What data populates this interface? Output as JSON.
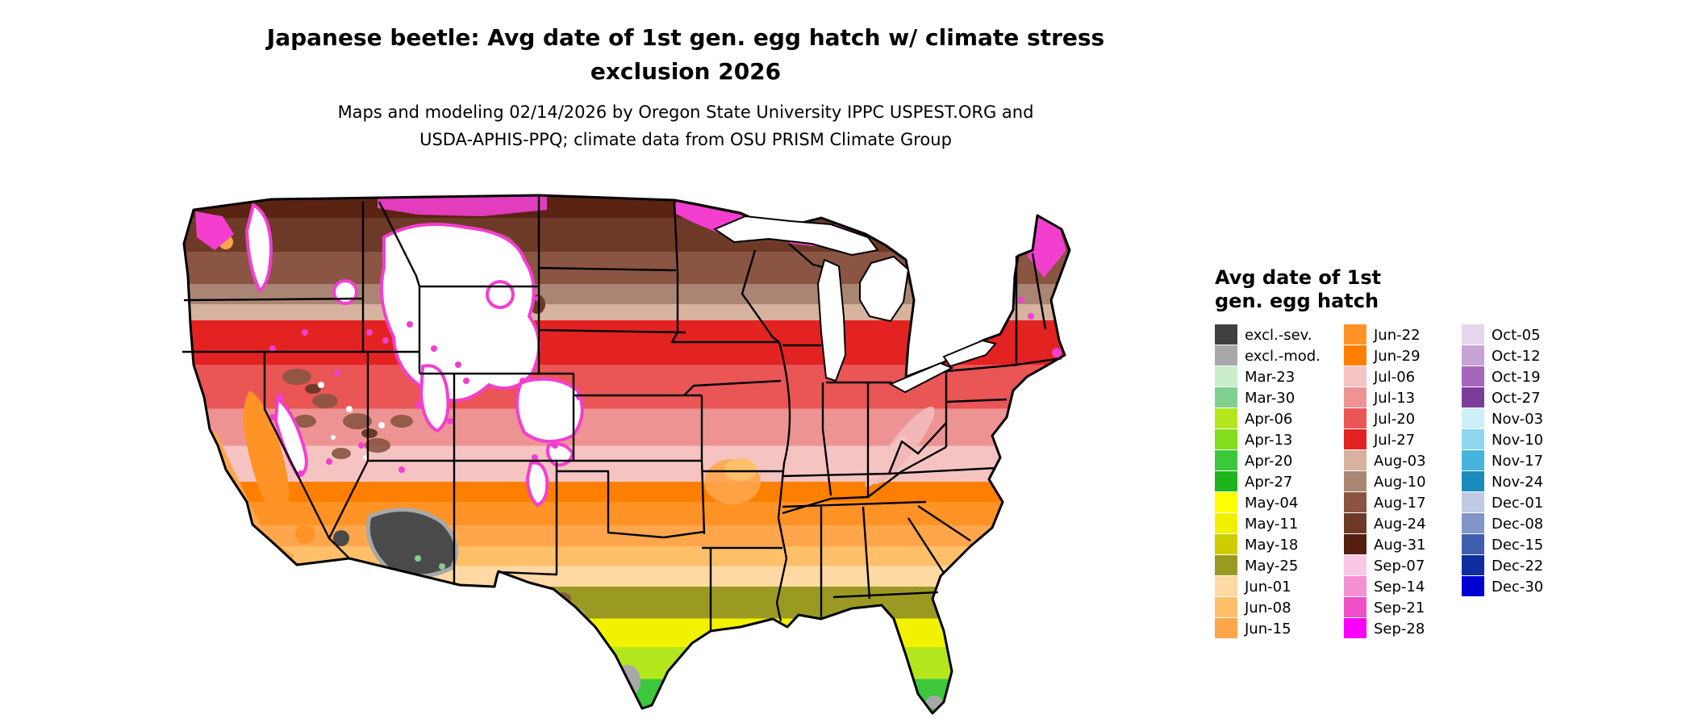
{
  "header": {
    "title_line1": "Japanese beetle: Avg date of 1st gen. egg hatch w/ climate stress",
    "title_line2": "exclusion 2026",
    "subtitle_line1": "Maps and modeling 02/14/2026 by Oregon State University IPPC USPEST.ORG and",
    "subtitle_line2": "USDA-APHIS-PPQ; climate data from OSU PRISM Climate Group"
  },
  "map": {
    "description": "Continental US raster map of average date of first generation egg hatch for Japanese beetle, with climate stress exclusion zones",
    "excluded_severe_color": "#404040",
    "excluded_moderate_color": "#a8a8a8"
  },
  "legend": {
    "title_line1": "Avg date of 1st",
    "title_line2": "gen. egg hatch",
    "columns": [
      {
        "entries": [
          {
            "label": "excl.-sev.",
            "color": "#404040"
          },
          {
            "label": "excl.-mod.",
            "color": "#a8a8a8"
          },
          {
            "label": "Mar-23",
            "color": "#c9ecc9"
          },
          {
            "label": "Mar-30",
            "color": "#7fcf8f"
          },
          {
            "label": "Apr-06",
            "color": "#b4e61e"
          },
          {
            "label": "Apr-13",
            "color": "#82dd1e"
          },
          {
            "label": "Apr-20",
            "color": "#3cc73c"
          },
          {
            "label": "Apr-27",
            "color": "#1eb41e"
          },
          {
            "label": "May-04",
            "color": "#ffff00"
          },
          {
            "label": "May-11",
            "color": "#f0f000"
          },
          {
            "label": "May-18",
            "color": "#cdcd00"
          },
          {
            "label": "May-25",
            "color": "#9a9a22"
          },
          {
            "label": "Jun-01",
            "color": "#ffd9a4"
          },
          {
            "label": "Jun-08",
            "color": "#ffc069"
          },
          {
            "label": "Jun-15",
            "color": "#ffa64d"
          }
        ]
      },
      {
        "entries": [
          {
            "label": "Jun-22",
            "color": "#ff9326"
          },
          {
            "label": "Jun-29",
            "color": "#ff7f00"
          },
          {
            "label": "Jul-06",
            "color": "#f6c3c3"
          },
          {
            "label": "Jul-13",
            "color": "#ee9393"
          },
          {
            "label": "Jul-20",
            "color": "#ea5555"
          },
          {
            "label": "Jul-27",
            "color": "#e32222"
          },
          {
            "label": "Aug-03",
            "color": "#d6b29f"
          },
          {
            "label": "Aug-10",
            "color": "#ab8573"
          },
          {
            "label": "Aug-17",
            "color": "#8a5542"
          },
          {
            "label": "Aug-24",
            "color": "#6e3a28"
          },
          {
            "label": "Aug-31",
            "color": "#551f0f"
          },
          {
            "label": "Sep-07",
            "color": "#fac8e6"
          },
          {
            "label": "Sep-14",
            "color": "#f590d5"
          },
          {
            "label": "Sep-21",
            "color": "#f04fc8"
          },
          {
            "label": "Sep-28",
            "color": "#fa00fa"
          }
        ]
      },
      {
        "entries": [
          {
            "label": "Oct-05",
            "color": "#e7d5ec"
          },
          {
            "label": "Oct-12",
            "color": "#c7a4d6"
          },
          {
            "label": "Oct-19",
            "color": "#a566bb"
          },
          {
            "label": "Oct-27",
            "color": "#7c3d99"
          },
          {
            "label": "Nov-03",
            "color": "#cdeff7"
          },
          {
            "label": "Nov-10",
            "color": "#8ed5ee"
          },
          {
            "label": "Nov-17",
            "color": "#45b5dd"
          },
          {
            "label": "Nov-24",
            "color": "#1b8dbd"
          },
          {
            "label": "Dec-01",
            "color": "#bfcbe2"
          },
          {
            "label": "Dec-08",
            "color": "#8195c9"
          },
          {
            "label": "Dec-15",
            "color": "#3f5fae"
          },
          {
            "label": "Dec-22",
            "color": "#0f2d9e"
          },
          {
            "label": "Dec-30",
            "color": "#0000d0"
          }
        ]
      }
    ]
  }
}
